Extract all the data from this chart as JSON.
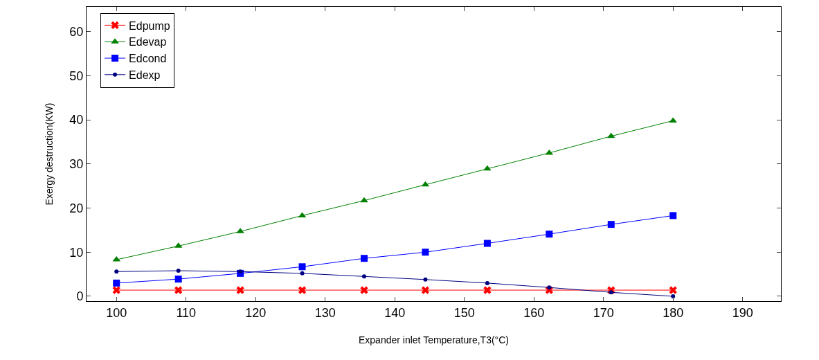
{
  "chart_data": {
    "type": "line",
    "xlabel": "Expander inlet Temperature,T3(°C)",
    "ylabel": "Exergy destruction(KW)",
    "x": [
      100,
      108.9,
      117.8,
      126.7,
      135.6,
      144.4,
      153.3,
      162.2,
      171.1,
      180
    ],
    "series": [
      {
        "name": "Edpump",
        "color": "#ff0000",
        "marker": "cross",
        "values": [
          1.4,
          1.4,
          1.4,
          1.4,
          1.4,
          1.4,
          1.4,
          1.4,
          1.4,
          1.4
        ]
      },
      {
        "name": "Edevap",
        "color": "#008000",
        "marker": "triangle",
        "values": [
          8.3,
          11.4,
          14.7,
          18.3,
          21.7,
          25.3,
          28.9,
          32.5,
          36.3,
          39.8
        ]
      },
      {
        "name": "Edcond",
        "color": "#0000ff",
        "marker": "square",
        "values": [
          3.0,
          3.9,
          5.2,
          6.7,
          8.6,
          10.0,
          12.0,
          14.1,
          16.3,
          18.3
        ]
      },
      {
        "name": "Edexp",
        "color": "#000080",
        "marker": "circle",
        "values": [
          5.6,
          5.8,
          5.6,
          5.2,
          4.5,
          3.8,
          3.0,
          2.0,
          0.9,
          0
        ]
      }
    ],
    "xlim": [
      95.7,
      195.5
    ],
    "xticks": [
      100,
      110,
      120,
      130,
      140,
      150,
      160,
      170,
      180,
      190
    ],
    "ylim": [
      -1.1,
      65.6
    ],
    "yticks": [
      0,
      10,
      20,
      30,
      40,
      50,
      60
    ],
    "grid": false,
    "legend": "top left",
    "line_style": "solid"
  }
}
